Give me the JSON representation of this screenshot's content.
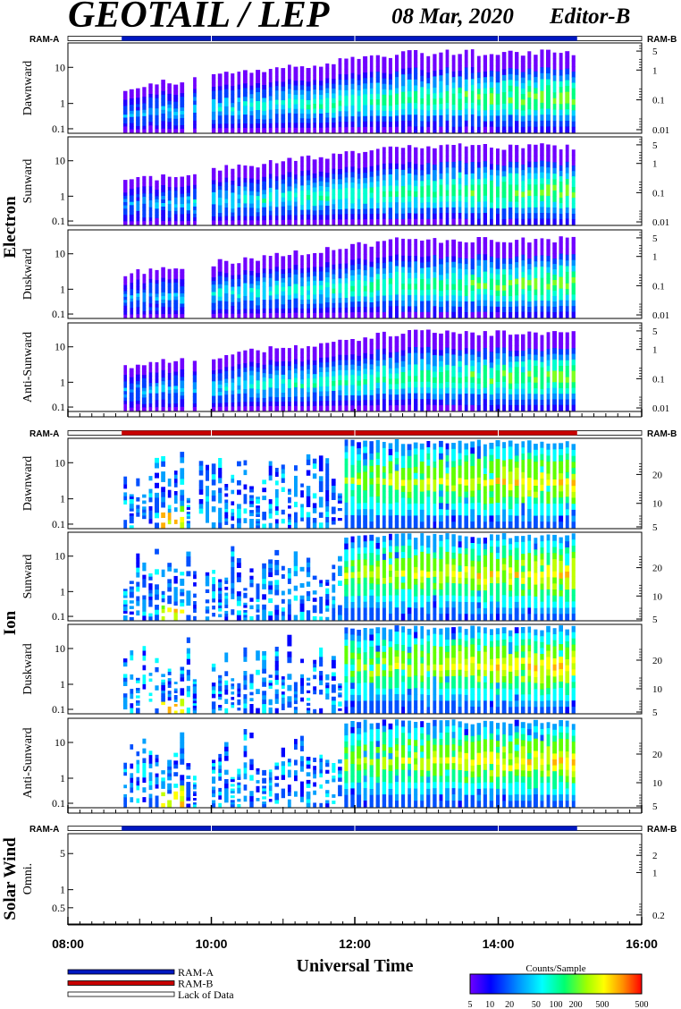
{
  "header": {
    "title": "GEOTAIL / LEP",
    "date": "08 Mar, 2020",
    "editor": "Editor-B"
  },
  "chart_data": {
    "type": "heatmap",
    "x": {
      "label": "Universal Time",
      "ticks": [
        "08:00",
        "10:00",
        "12:00",
        "14:00",
        "16:00"
      ],
      "range_hours": [
        8,
        16
      ]
    },
    "coverage": {
      "ram_a_label": "RAM-A",
      "ram_b_label": "RAM-B",
      "data_start_hour": 8.75,
      "data_end_hour": 15.1
    },
    "colorbar": {
      "title": "Counts/Sample",
      "ticks": [
        "5",
        "10",
        "20",
        "50",
        "100",
        "200",
        "500"
      ],
      "colors": [
        "#7000ff",
        "#0000ff",
        "#0090ff",
        "#00ffff",
        "#00ff70",
        "#a0ff00",
        "#ffff00",
        "#ff9000",
        "#ff0000"
      ]
    },
    "groups": [
      {
        "name": "Electron",
        "bar_color": "#0018c0",
        "panels": [
          {
            "label": "Dawnward",
            "left_ticks": [
              "10",
              "1",
              "0.1"
            ],
            "right_ticks": [
              "5",
              "1",
              "0.1",
              "0.01"
            ]
          },
          {
            "label": "Sunward",
            "left_ticks": [
              "10",
              "1",
              "0.1"
            ],
            "right_ticks": [
              "5",
              "1",
              "0.1",
              "0.01"
            ]
          },
          {
            "label": "Duskward",
            "left_ticks": [
              "10",
              "1",
              "0.1"
            ],
            "right_ticks": [
              "5",
              "1",
              "0.1",
              "0.01"
            ]
          },
          {
            "label": "Anti-Sunward",
            "left_ticks": [
              "10",
              "1",
              "0.1"
            ],
            "right_ticks": [
              "5",
              "1",
              "0.1",
              "0.01"
            ]
          }
        ]
      },
      {
        "name": "Ion",
        "bar_color": "#c80000",
        "panels": [
          {
            "label": "Dawnward",
            "left_ticks": [
              "10",
              "1",
              "0.1"
            ],
            "right_ticks": [
              "20",
              "10",
              "5"
            ]
          },
          {
            "label": "Sunward",
            "left_ticks": [
              "10",
              "1",
              "0.1"
            ],
            "right_ticks": [
              "20",
              "10",
              "5"
            ]
          },
          {
            "label": "Duskward",
            "left_ticks": [
              "10",
              "1",
              "0.1"
            ],
            "right_ticks": [
              "20",
              "10",
              "5"
            ]
          },
          {
            "label": "Anti-Sunward",
            "left_ticks": [
              "10",
              "1",
              "0.1"
            ],
            "right_ticks": [
              "20",
              "10",
              "5"
            ]
          }
        ]
      },
      {
        "name": "Solar Wind",
        "bar_color": "#0018c0",
        "panels": [
          {
            "label": "Omni.",
            "left_ticks": [
              "5",
              "1",
              "0.5"
            ],
            "right_ticks": [
              "2",
              "1",
              "0.2"
            ]
          }
        ]
      }
    ],
    "legend": [
      {
        "label": "RAM-A",
        "color": "#0018c0"
      },
      {
        "label": "RAM-B",
        "color": "#c80000"
      },
      {
        "label": "Lack of Data",
        "color": "#ffffff"
      }
    ]
  }
}
